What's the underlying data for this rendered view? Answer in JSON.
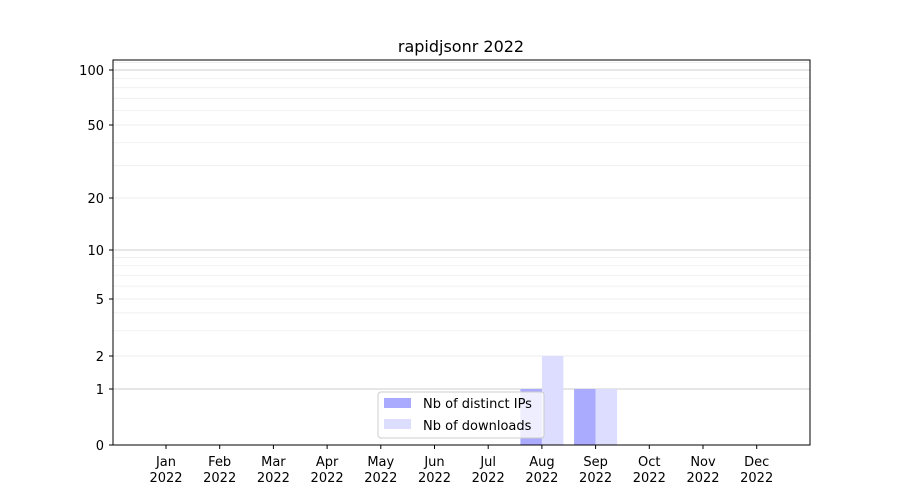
{
  "chart_data": {
    "type": "bar",
    "title": "rapidjsonr 2022",
    "xlabel": "",
    "ylabel": "",
    "y_scale": "symlog",
    "ylim": [
      0,
      110
    ],
    "yticks": [
      0,
      1,
      2,
      5,
      10,
      20,
      50,
      100
    ],
    "ytick_labels": [
      "0",
      "1",
      "2",
      "5",
      "10",
      "20",
      "50",
      "100"
    ],
    "grid": true,
    "legend_placement": "lower-center",
    "categories": [
      "Jan\n2022",
      "Feb\n2022",
      "Mar\n2022",
      "Apr\n2022",
      "May\n2022",
      "Jun\n2022",
      "Jul\n2022",
      "Aug\n2022",
      "Sep\n2022",
      "Oct\n2022",
      "Nov\n2022",
      "Dec\n2022"
    ],
    "category_lines": [
      [
        "Jan",
        "2022"
      ],
      [
        "Feb",
        "2022"
      ],
      [
        "Mar",
        "2022"
      ],
      [
        "Apr",
        "2022"
      ],
      [
        "May",
        "2022"
      ],
      [
        "Jun",
        "2022"
      ],
      [
        "Jul",
        "2022"
      ],
      [
        "Aug",
        "2022"
      ],
      [
        "Sep",
        "2022"
      ],
      [
        "Oct",
        "2022"
      ],
      [
        "Nov",
        "2022"
      ],
      [
        "Dec",
        "2022"
      ]
    ],
    "series": [
      {
        "name": "Nb of distinct IPs",
        "color": "#aaaaff",
        "values": [
          0,
          0,
          0,
          0,
          0,
          0,
          0,
          1,
          1,
          0,
          0,
          0
        ]
      },
      {
        "name": "Nb of downloads",
        "color": "#ddddff",
        "values": [
          0,
          0,
          0,
          0,
          0,
          0,
          0,
          2,
          1,
          0,
          0,
          0
        ]
      }
    ]
  }
}
